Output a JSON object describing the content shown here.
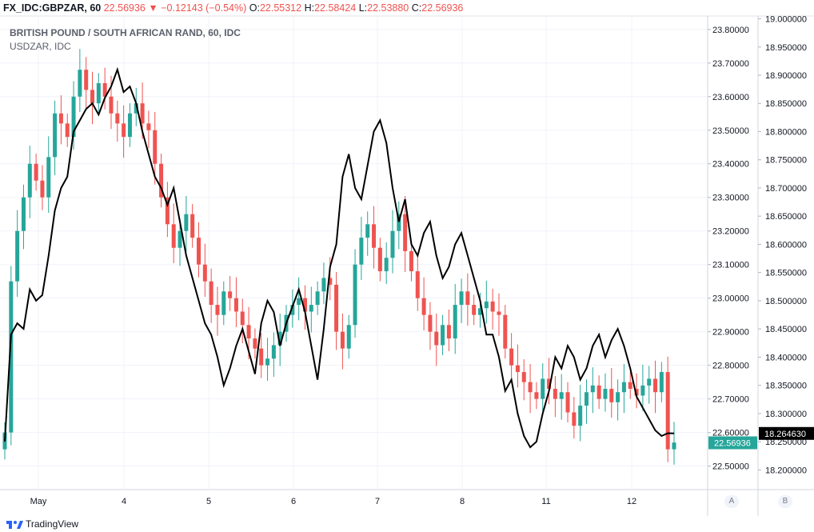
{
  "header": {
    "symbol": "FX_IDC:GBPZAR, 60",
    "last": "22.56936",
    "arrow": "▼",
    "change": "−0.12143 (−0.54%)",
    "o_label": "O:",
    "o_value": "22.55312",
    "h_label": "H:",
    "h_value": "22.58424",
    "l_label": "L:",
    "l_value": "22.53880",
    "c_label": "C:",
    "c_value": "22.56936"
  },
  "footer": {
    "brand": "TradingView"
  },
  "chart_data": {
    "type": "line",
    "title": "BRITISH POUND / SOUTH AFRICAN RAND, 60, IDC",
    "subtitle": "USDZAR, IDC",
    "x_ticks": [
      "May",
      "4",
      "5",
      "6",
      "7",
      "8",
      "11",
      "12"
    ],
    "y_left": {
      "ticks": [
        "23.80000",
        "23.70000",
        "23.60000",
        "23.50000",
        "23.40000",
        "23.30000",
        "23.20000",
        "23.10000",
        "23.00000",
        "22.90000",
        "22.80000",
        "22.70000",
        "22.60000",
        "22.50000"
      ],
      "range": [
        22.43,
        23.84
      ],
      "last_label": "22.56936"
    },
    "y_right": {
      "ticks": [
        "19.000000",
        "18.950000",
        "18.900000",
        "18.850000",
        "18.800000",
        "18.750000",
        "18.700000",
        "18.650000",
        "18.600000",
        "18.550000",
        "18.500000",
        "18.450000",
        "18.400000",
        "18.350000",
        "18.300000",
        "18.250000",
        "18.200000"
      ],
      "range": [
        18.165,
        19.005
      ],
      "last_label": "18.264630"
    },
    "axis_buttons": [
      "A",
      "B"
    ],
    "grid": true,
    "colors": {
      "up": "#26a69a",
      "down": "#ef5350",
      "line": "#000000",
      "grid": "#f0f3fa",
      "last_left_bg": "#26a69a",
      "last_right_bg": "#000000"
    },
    "series": [
      {
        "type": "candlestick",
        "symbol": "GBPZAR",
        "scale": "left",
        "close": [
          22.6,
          23.05,
          23.2,
          23.3,
          23.4,
          23.35,
          23.3,
          23.42,
          23.55,
          23.52,
          23.48,
          23.6,
          23.68,
          23.62,
          23.58,
          23.64,
          23.6,
          23.55,
          23.52,
          23.48,
          23.55,
          23.58,
          23.52,
          23.5,
          23.4,
          23.3,
          23.22,
          23.15,
          23.2,
          23.25,
          23.18,
          23.1,
          23.05,
          22.98,
          22.95,
          23.02,
          23.0,
          22.96,
          22.92,
          22.88,
          22.85,
          22.8,
          22.82,
          22.86,
          22.9,
          22.95,
          22.98,
          23.0,
          22.96,
          22.98,
          23.02,
          23.06,
          23.04,
          22.9,
          22.85,
          22.92,
          23.1,
          23.18,
          23.22,
          23.15,
          23.08,
          23.12,
          23.2,
          23.25,
          23.14,
          23.08,
          23.0,
          22.95,
          22.9,
          22.86,
          22.92,
          22.88,
          22.98,
          23.02,
          22.98,
          22.95,
          22.97,
          22.99,
          22.96,
          22.95,
          22.85,
          22.8,
          22.78,
          22.75,
          22.72,
          22.7,
          22.76,
          22.73,
          22.7,
          22.72,
          22.66,
          22.62,
          22.68,
          22.72,
          22.74,
          22.7,
          22.73,
          22.69,
          22.72,
          22.75,
          22.73,
          22.71,
          22.74,
          22.76,
          22.72,
          22.78,
          22.55,
          22.57
        ],
        "last": 22.56936
      },
      {
        "type": "line",
        "symbol": "USDZAR",
        "scale": "right",
        "values": [
          18.25,
          18.44,
          18.46,
          18.45,
          18.52,
          18.5,
          18.51,
          18.58,
          18.66,
          18.7,
          18.72,
          18.8,
          18.82,
          18.84,
          18.85,
          18.83,
          18.86,
          18.88,
          18.91,
          18.87,
          18.88,
          18.85,
          18.8,
          18.76,
          18.72,
          18.7,
          18.67,
          18.7,
          18.64,
          18.58,
          18.54,
          18.5,
          18.46,
          18.44,
          18.4,
          18.35,
          18.38,
          18.42,
          18.45,
          18.41,
          18.37,
          18.46,
          18.5,
          18.48,
          18.42,
          18.46,
          18.49,
          18.52,
          18.48,
          18.42,
          18.36,
          18.45,
          18.56,
          18.6,
          18.72,
          18.76,
          18.7,
          18.68,
          18.74,
          18.8,
          18.82,
          18.78,
          18.7,
          18.64,
          18.68,
          18.6,
          18.58,
          18.62,
          18.64,
          18.58,
          18.54,
          18.56,
          18.6,
          18.62,
          18.58,
          18.54,
          18.5,
          18.44,
          18.44,
          18.4,
          18.34,
          18.36,
          18.3,
          18.26,
          18.24,
          18.25,
          18.3,
          18.34,
          18.4,
          18.38,
          18.42,
          18.4,
          18.36,
          18.38,
          18.42,
          18.44,
          18.4,
          18.43,
          18.45,
          18.42,
          18.38,
          18.33,
          18.31,
          18.29,
          18.27,
          18.26,
          18.265,
          18.2646
        ],
        "last": 18.26463
      }
    ]
  }
}
